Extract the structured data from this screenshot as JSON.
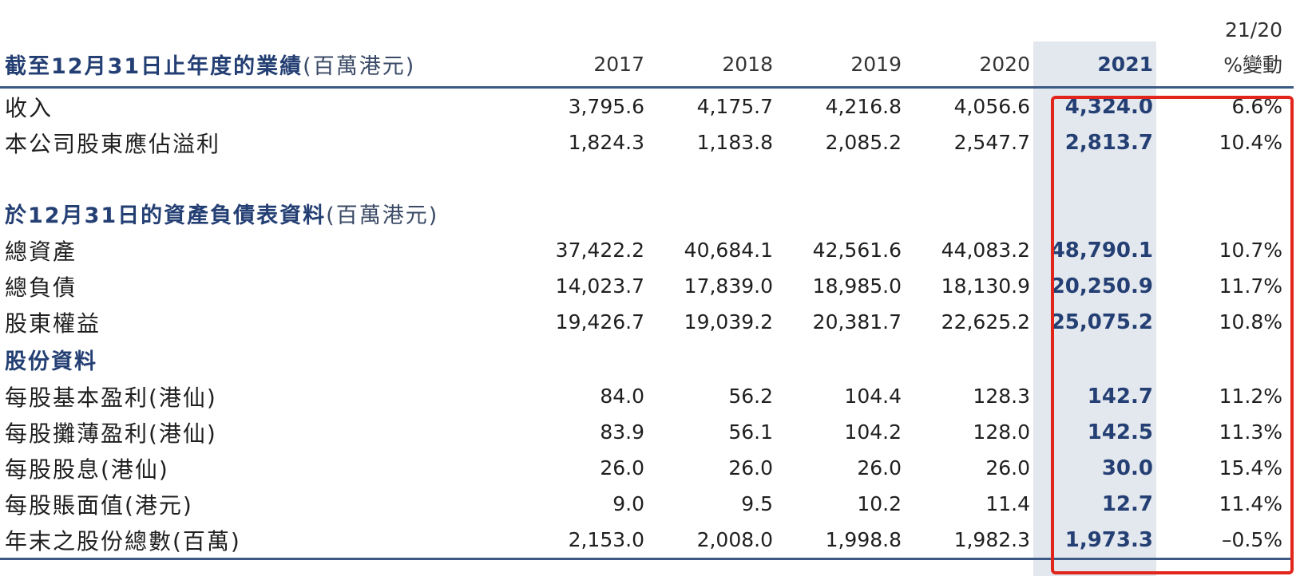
{
  "header": {
    "title": "截至12月31日止年度的業績",
    "title_unit": "(百萬港元)",
    "years": [
      "2017",
      "2018",
      "2019",
      "2020",
      "2021"
    ],
    "change_top": "21/20",
    "change_label": "%變動"
  },
  "results_rows": [
    {
      "label": "收入",
      "values": [
        "3,795.6",
        "4,175.7",
        "4,216.8",
        "4,056.6",
        "4,324.0"
      ],
      "change": "6.6%"
    },
    {
      "label": "本公司股東應佔溢利",
      "values": [
        "1,824.3",
        "1,183.8",
        "2,085.2",
        "2,547.7",
        "2,813.7"
      ],
      "change": "10.4%"
    }
  ],
  "balance_section": {
    "title": "於12月31日的資產負債表資料",
    "unit": "(百萬港元)",
    "rows": [
      {
        "label": "總資產",
        "values": [
          "37,422.2",
          "40,684.1",
          "42,561.6",
          "44,083.2",
          "48,790.1"
        ],
        "change": "10.7%"
      },
      {
        "label": "總負債",
        "values": [
          "14,023.7",
          "17,839.0",
          "18,985.0",
          "18,130.9",
          "20,250.9"
        ],
        "change": "11.7%"
      },
      {
        "label": "股東權益",
        "values": [
          "19,426.7",
          "19,039.2",
          "20,381.7",
          "22,625.2",
          "25,075.2"
        ],
        "change": "10.8%"
      }
    ]
  },
  "share_section": {
    "title": "股份資料",
    "rows": [
      {
        "label": "每股基本盈利(港仙)",
        "values": [
          "84.0",
          "56.2",
          "104.4",
          "128.3",
          "142.7"
        ],
        "change": "11.2%"
      },
      {
        "label": "每股攤薄盈利(港仙)",
        "values": [
          "83.9",
          "56.1",
          "104.2",
          "128.0",
          "142.5"
        ],
        "change": "11.3%"
      },
      {
        "label": "每股股息(港仙)",
        "values": [
          "26.0",
          "26.0",
          "26.0",
          "26.0",
          "30.0"
        ],
        "change": "15.4%"
      },
      {
        "label": "每股賬面值(港元)",
        "values": [
          "9.0",
          "9.5",
          "10.2",
          "11.4",
          "12.7"
        ],
        "change": "11.4%"
      },
      {
        "label": "年末之股份總數(百萬)",
        "values": [
          "2,153.0",
          "2,008.0",
          "1,998.8",
          "1,982.3",
          "1,973.3"
        ],
        "change": "–0.5%"
      }
    ]
  },
  "colors": {
    "accent_blue": "#243f73",
    "highlight_band": "#e3e7ee",
    "annotation_red": "#e1251b",
    "rule": "#3c5a85"
  }
}
